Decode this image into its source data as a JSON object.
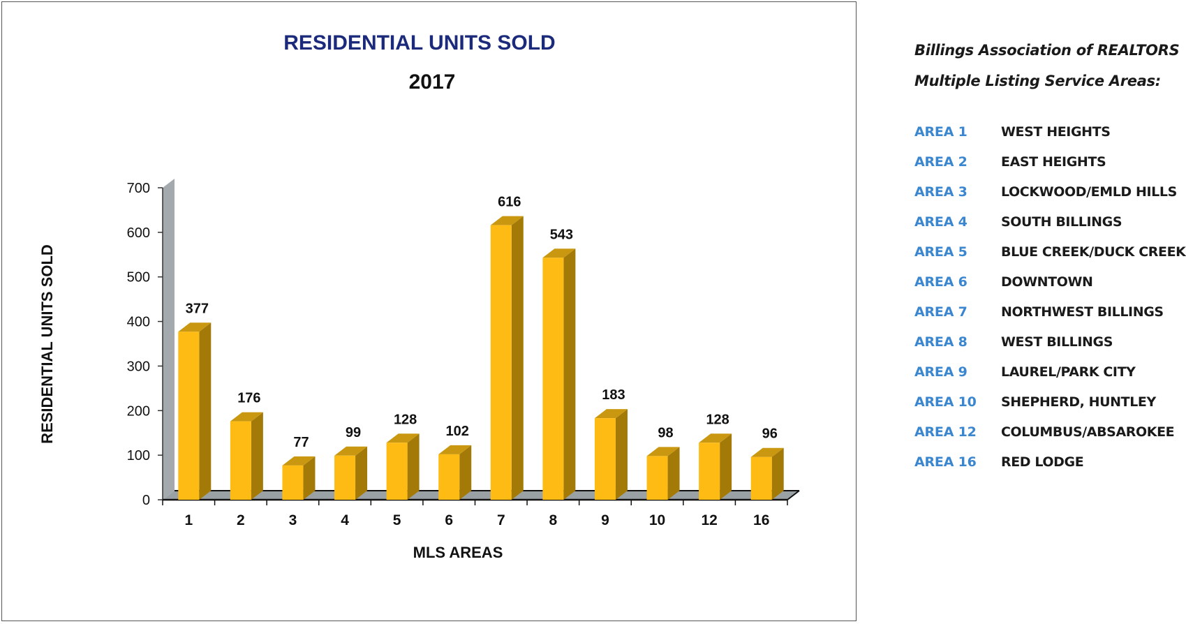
{
  "chart_data": {
    "type": "bar",
    "title": "RESIDENTIAL UNITS SOLD",
    "subtitle": "2017",
    "xlabel": "MLS AREAS",
    "ylabel": "RESIDENTIAL UNITS SOLD",
    "ylim": [
      0,
      700
    ],
    "yticks": [
      0,
      100,
      200,
      300,
      400,
      500,
      600,
      700
    ],
    "categories": [
      "1",
      "2",
      "3",
      "4",
      "5",
      "6",
      "7",
      "8",
      "9",
      "10",
      "12",
      "16"
    ],
    "values": [
      377,
      176,
      77,
      99,
      128,
      102,
      616,
      543,
      183,
      98,
      128,
      96
    ],
    "data_labels": [
      "377",
      "176",
      "77",
      "99",
      "128",
      "102",
      "616",
      "543",
      "183",
      "98",
      "128",
      "96"
    ],
    "grid": false,
    "colors": {
      "bar_front": "#fdbb13",
      "bar_side": "#a37a07",
      "bar_top": "#c99810",
      "wall": "#a3a9ad",
      "floor": "#9aa1a5",
      "title": "#1b2a7a",
      "text": "#111111"
    }
  },
  "legend": {
    "heading_line1": "Billings Association of REALTORS",
    "heading_line2": "Multiple Listing Service Areas:",
    "code_color": "#3a86cf",
    "items": [
      {
        "code": "AREA 1",
        "name": "WEST HEIGHTS"
      },
      {
        "code": "AREA 2",
        "name": "EAST HEIGHTS"
      },
      {
        "code": "AREA 3",
        "name": "LOCKWOOD/EMLD HILLS"
      },
      {
        "code": "AREA 4",
        "name": "SOUTH BILLINGS"
      },
      {
        "code": "AREA 5",
        "name": "BLUE CREEK/DUCK CREEK"
      },
      {
        "code": "AREA 6",
        "name": "DOWNTOWN"
      },
      {
        "code": "AREA 7",
        "name": "NORTHWEST BILLINGS"
      },
      {
        "code": "AREA 8",
        "name": "WEST BILLINGS"
      },
      {
        "code": "AREA 9",
        "name": "LAUREL/PARK CITY"
      },
      {
        "code": "AREA 10",
        "name": "SHEPHERD, HUNTLEY"
      },
      {
        "code": "AREA 12",
        "name": "COLUMBUS/ABSAROKEE"
      },
      {
        "code": "AREA 16",
        "name": "RED LODGE"
      }
    ]
  }
}
